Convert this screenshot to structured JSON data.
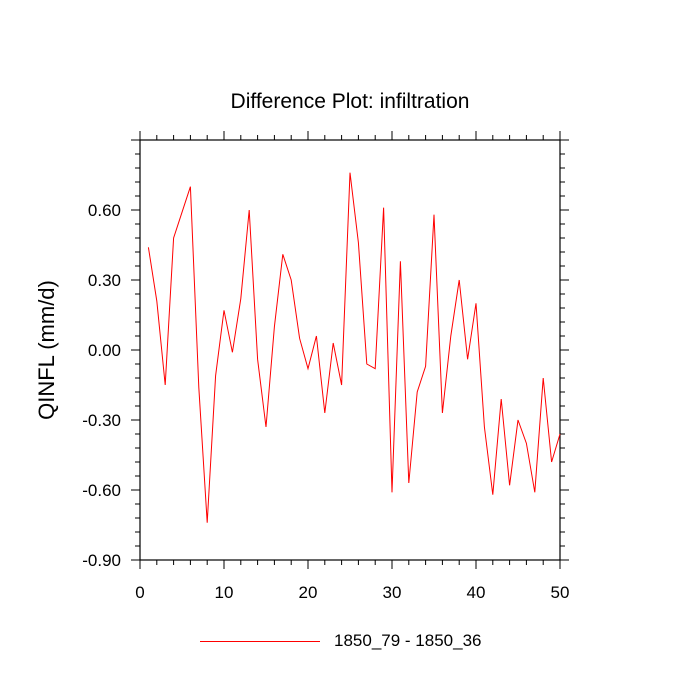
{
  "chart_data": {
    "type": "line",
    "title": "Difference Plot: infiltration",
    "xlabel": "",
    "ylabel": "QINFL  (mm/d)",
    "xlim": [
      0,
      50
    ],
    "ylim": [
      -0.9,
      0.9
    ],
    "x_ticks": [
      0,
      10,
      20,
      30,
      40,
      50
    ],
    "x_tick_labels": [
      "0",
      "10",
      "20",
      "30",
      "40",
      "50"
    ],
    "y_ticks": [
      -0.9,
      -0.6,
      -0.3,
      0.0,
      0.3,
      0.6
    ],
    "y_tick_labels": [
      "-0.90",
      "-0.60",
      "-0.30",
      "0.00",
      "0.30",
      "0.60"
    ],
    "line_color": "#ff0000",
    "series": [
      {
        "name": "1850_79 - 1850_36",
        "x": [
          1,
          2,
          3,
          4,
          5,
          6,
          7,
          8,
          9,
          10,
          11,
          12,
          13,
          14,
          15,
          16,
          17,
          18,
          19,
          20,
          21,
          22,
          23,
          24,
          25,
          26,
          27,
          28,
          29,
          30,
          31,
          32,
          33,
          34,
          35,
          36,
          37,
          38,
          39,
          40,
          41,
          42,
          43,
          44,
          45,
          46,
          47,
          48,
          49,
          50
        ],
        "values": [
          0.44,
          0.21,
          -0.15,
          0.48,
          0.59,
          0.7,
          -0.16,
          -0.74,
          -0.11,
          0.17,
          -0.01,
          0.22,
          0.6,
          -0.04,
          -0.33,
          0.1,
          0.41,
          0.3,
          0.05,
          -0.08,
          0.06,
          -0.27,
          0.03,
          -0.15,
          0.76,
          0.46,
          -0.06,
          -0.08,
          0.61,
          -0.61,
          0.38,
          -0.57,
          -0.18,
          -0.07,
          0.58,
          -0.27,
          0.06,
          0.3,
          -0.04,
          0.2,
          -0.33,
          -0.62,
          -0.21,
          -0.58,
          -0.3,
          -0.4,
          -0.61,
          -0.12,
          -0.48,
          -0.36
        ]
      }
    ],
    "legend_position": "bottom"
  }
}
